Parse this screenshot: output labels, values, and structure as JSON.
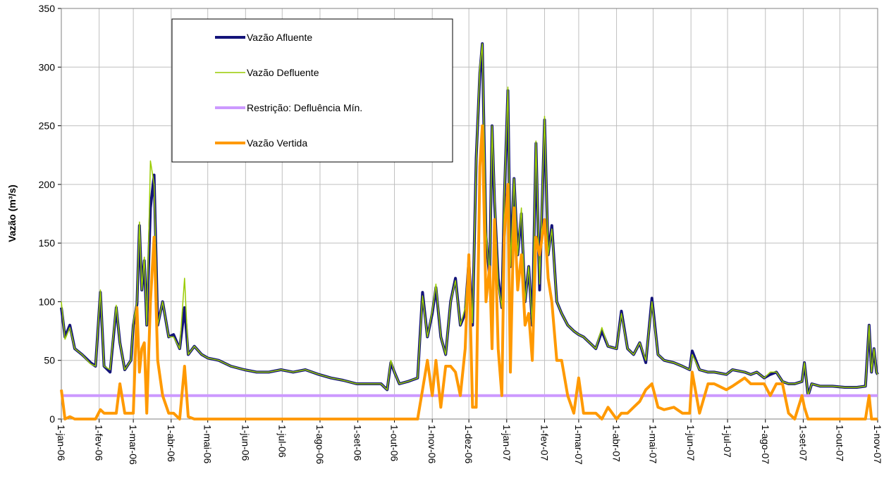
{
  "chart_data": {
    "type": "line",
    "ylabel": "Vazão (m³/s)",
    "x": [
      "2006-01-01",
      "2006-01-04",
      "2006-01-08",
      "2006-01-12",
      "2006-01-18",
      "2006-01-25",
      "2006-01-29",
      "2006-02-02",
      "2006-02-05",
      "2006-02-10",
      "2006-02-15",
      "2006-02-18",
      "2006-02-22",
      "2006-02-27",
      "2006-03-01",
      "2006-03-04",
      "2006-03-06",
      "2006-03-08",
      "2006-03-10",
      "2006-03-12",
      "2006-03-15",
      "2006-03-18",
      "2006-03-21",
      "2006-03-25",
      "2006-03-30",
      "2006-04-03",
      "2006-04-08",
      "2006-04-12",
      "2006-04-15",
      "2006-04-20",
      "2006-04-26",
      "2006-05-01",
      "2006-05-10",
      "2006-05-20",
      "2006-05-31",
      "2006-06-10",
      "2006-06-20",
      "2006-06-30",
      "2006-07-10",
      "2006-07-20",
      "2006-07-31",
      "2006-08-10",
      "2006-08-20",
      "2006-08-31",
      "2006-09-10",
      "2006-09-20",
      "2006-09-25",
      "2006-09-28",
      "2006-10-01",
      "2006-10-05",
      "2006-10-12",
      "2006-10-20",
      "2006-10-24",
      "2006-10-28",
      "2006-11-01",
      "2006-11-04",
      "2006-11-08",
      "2006-11-12",
      "2006-11-16",
      "2006-11-20",
      "2006-11-24",
      "2006-11-28",
      "2006-12-01",
      "2006-12-04",
      "2006-12-07",
      "2006-12-10",
      "2006-12-12",
      "2006-12-15",
      "2006-12-18",
      "2006-12-20",
      "2006-12-22",
      "2006-12-25",
      "2006-12-28",
      "2006-12-30",
      "2007-01-02",
      "2007-01-04",
      "2007-01-07",
      "2007-01-10",
      "2007-01-13",
      "2007-01-16",
      "2007-01-19",
      "2007-01-22",
      "2007-01-25",
      "2007-01-28",
      "2007-02-01",
      "2007-02-04",
      "2007-02-07",
      "2007-02-11",
      "2007-02-15",
      "2007-02-20",
      "2007-02-25",
      "2007-03-01",
      "2007-03-05",
      "2007-03-10",
      "2007-03-15",
      "2007-03-20",
      "2007-03-25",
      "2007-04-01",
      "2007-04-05",
      "2007-04-10",
      "2007-04-15",
      "2007-04-20",
      "2007-04-25",
      "2007-04-30",
      "2007-05-05",
      "2007-05-10",
      "2007-05-18",
      "2007-05-25",
      "2007-05-31",
      "2007-06-02",
      "2007-06-08",
      "2007-06-15",
      "2007-06-20",
      "2007-06-30",
      "2007-07-05",
      "2007-07-15",
      "2007-07-20",
      "2007-07-25",
      "2007-07-31",
      "2007-08-05",
      "2007-08-10",
      "2007-08-15",
      "2007-08-20",
      "2007-08-25",
      "2007-08-31",
      "2007-09-02",
      "2007-09-05",
      "2007-09-08",
      "2007-09-15",
      "2007-09-25",
      "2007-10-05",
      "2007-10-15",
      "2007-10-22",
      "2007-10-25",
      "2007-10-27",
      "2007-10-29",
      "2007-10-31",
      "2007-11-01"
    ],
    "series": [
      {
        "name": "Vazão Afluente",
        "color": "#14147a",
        "width": 4,
        "values": [
          95,
          70,
          80,
          60,
          55,
          48,
          45,
          108,
          45,
          40,
          95,
          65,
          42,
          50,
          80,
          98,
          165,
          110,
          135,
          80,
          180,
          208,
          80,
          100,
          70,
          72,
          60,
          95,
          55,
          62,
          55,
          52,
          50,
          45,
          42,
          40,
          40,
          42,
          40,
          42,
          38,
          35,
          33,
          30,
          30,
          30,
          25,
          48,
          40,
          30,
          32,
          35,
          108,
          70,
          90,
          112,
          70,
          55,
          100,
          120,
          80,
          90,
          135,
          80,
          222,
          295,
          320,
          155,
          120,
          250,
          185,
          120,
          95,
          187,
          280,
          130,
          205,
          140,
          175,
          100,
          130,
          80,
          235,
          110,
          255,
          140,
          165,
          100,
          90,
          80,
          75,
          72,
          70,
          65,
          60,
          75,
          62,
          60,
          92,
          60,
          55,
          65,
          48,
          103,
          55,
          50,
          48,
          45,
          42,
          58,
          42,
          40,
          40,
          38,
          42,
          40,
          38,
          40,
          35,
          38,
          40,
          32,
          30,
          30,
          32,
          48,
          20,
          30,
          28,
          28,
          27,
          27,
          28,
          80,
          40,
          60,
          40,
          38
        ]
      },
      {
        "name": "Vazão Defluente",
        "color": "#99cc00",
        "width": 1.5,
        "values": [
          100,
          68,
          78,
          60,
          55,
          47,
          45,
          110,
          45,
          42,
          97,
          65,
          42,
          50,
          82,
          100,
          168,
          110,
          138,
          80,
          220,
          200,
          80,
          100,
          70,
          70,
          60,
          120,
          55,
          62,
          55,
          52,
          50,
          45,
          42,
          40,
          40,
          42,
          40,
          42,
          38,
          35,
          33,
          30,
          30,
          30,
          25,
          50,
          40,
          30,
          32,
          35,
          105,
          70,
          92,
          115,
          70,
          55,
          100,
          118,
          80,
          95,
          140,
          82,
          220,
          300,
          320,
          160,
          120,
          250,
          190,
          115,
          95,
          190,
          283,
          130,
          205,
          140,
          180,
          100,
          130,
          80,
          237,
          115,
          258,
          140,
          162,
          100,
          90,
          80,
          75,
          72,
          70,
          65,
          60,
          78,
          62,
          60,
          90,
          60,
          55,
          65,
          50,
          100,
          55,
          50,
          48,
          45,
          42,
          55,
          42,
          40,
          40,
          38,
          42,
          40,
          38,
          40,
          35,
          40,
          40,
          32,
          30,
          30,
          32,
          48,
          20,
          30,
          28,
          28,
          27,
          27,
          28,
          80,
          40,
          60,
          40,
          38
        ]
      },
      {
        "name": "Restrição: Defluência Mín.",
        "color": "#cc99ff",
        "width": 4,
        "values": [
          20,
          20,
          20,
          20,
          20,
          20,
          20,
          20,
          20,
          20,
          20,
          20,
          20,
          20,
          20,
          20,
          20,
          20,
          20,
          20,
          20,
          20,
          20,
          20,
          20,
          20,
          20,
          20,
          20,
          20,
          20,
          20,
          20,
          20,
          20,
          20,
          20,
          20,
          20,
          20,
          20,
          20,
          20,
          20,
          20,
          20,
          20,
          20,
          20,
          20,
          20,
          20,
          20,
          20,
          20,
          20,
          20,
          20,
          20,
          20,
          20,
          20,
          20,
          20,
          20,
          20,
          20,
          20,
          20,
          20,
          20,
          20,
          20,
          20,
          20,
          20,
          20,
          20,
          20,
          20,
          20,
          20,
          20,
          20,
          20,
          20,
          20,
          20,
          20,
          20,
          20,
          20,
          20,
          20,
          20,
          20,
          20,
          20,
          20,
          20,
          20,
          20,
          20,
          20,
          20,
          20,
          20,
          20,
          20,
          20,
          20,
          20,
          20,
          20,
          20,
          20,
          20,
          20,
          20,
          20,
          20,
          20,
          20,
          20,
          20,
          20,
          20,
          20,
          20,
          20,
          20,
          20,
          20,
          20,
          20,
          20,
          20,
          20
        ]
      },
      {
        "name": "Vazão Vertida",
        "color": "#ff9900",
        "width": 4,
        "values": [
          25,
          0,
          2,
          0,
          0,
          0,
          0,
          8,
          5,
          5,
          5,
          30,
          5,
          5,
          5,
          95,
          40,
          60,
          65,
          5,
          100,
          155,
          50,
          20,
          5,
          5,
          0,
          45,
          2,
          0,
          0,
          0,
          0,
          0,
          0,
          0,
          0,
          0,
          0,
          0,
          0,
          0,
          0,
          0,
          0,
          0,
          0,
          0,
          0,
          0,
          0,
          0,
          25,
          50,
          20,
          50,
          10,
          45,
          45,
          40,
          20,
          60,
          140,
          10,
          10,
          215,
          250,
          100,
          130,
          60,
          170,
          60,
          20,
          155,
          200,
          40,
          180,
          110,
          140,
          80,
          90,
          50,
          155,
          140,
          170,
          120,
          100,
          50,
          50,
          20,
          5,
          35,
          5,
          5,
          5,
          0,
          10,
          0,
          5,
          5,
          10,
          15,
          25,
          30,
          10,
          8,
          10,
          5,
          5,
          40,
          5,
          30,
          30,
          25,
          28,
          35,
          30,
          30,
          30,
          20,
          30,
          30,
          5,
          0,
          20,
          10,
          0,
          0,
          0,
          0,
          0,
          0,
          0,
          20,
          0,
          0,
          0,
          0
        ]
      }
    ],
    "xlim": [
      "2006-01-01",
      "2007-11-01"
    ],
    "xticks": [
      {
        "value": "2006-01-01",
        "label": "1-jan-06"
      },
      {
        "value": "2006-02-01",
        "label": "1-fev-06"
      },
      {
        "value": "2006-03-01",
        "label": "1-mar-06"
      },
      {
        "value": "2006-04-01",
        "label": "1-abr-06"
      },
      {
        "value": "2006-05-01",
        "label": "1-mai-06"
      },
      {
        "value": "2006-06-01",
        "label": "1-jun-06"
      },
      {
        "value": "2006-07-01",
        "label": "1-jul-06"
      },
      {
        "value": "2006-08-01",
        "label": "1-ago-06"
      },
      {
        "value": "2006-09-01",
        "label": "1-set-06"
      },
      {
        "value": "2006-10-01",
        "label": "1-out-06"
      },
      {
        "value": "2006-11-01",
        "label": "1-nov-06"
      },
      {
        "value": "2006-12-01",
        "label": "1-dez-06"
      },
      {
        "value": "2007-01-01",
        "label": "1-jan-07"
      },
      {
        "value": "2007-02-01",
        "label": "1-fev-07"
      },
      {
        "value": "2007-03-01",
        "label": "1-mar-07"
      },
      {
        "value": "2007-04-01",
        "label": "1-abr-07"
      },
      {
        "value": "2007-05-01",
        "label": "1-mai-07"
      },
      {
        "value": "2007-06-01",
        "label": "1-jun-07"
      },
      {
        "value": "2007-07-01",
        "label": "1-jul-07"
      },
      {
        "value": "2007-08-01",
        "label": "1-ago-07"
      },
      {
        "value": "2007-09-01",
        "label": "1-set-07"
      },
      {
        "value": "2007-10-01",
        "label": "1-out-07"
      },
      {
        "value": "2007-11-01",
        "label": "1-nov-07"
      }
    ],
    "ylim": [
      0,
      350
    ],
    "yticks": [
      0,
      50,
      100,
      150,
      200,
      250,
      300,
      350
    ],
    "grid": true
  }
}
